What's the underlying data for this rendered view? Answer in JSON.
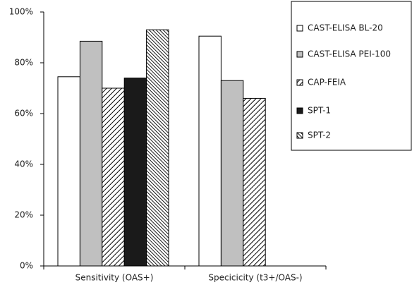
{
  "chart_data": {
    "type": "bar",
    "categories": [
      "Sensitivity (OAS+)",
      "Specicicity (t3+/OAS-)"
    ],
    "series": [
      {
        "name": "CAST-ELISA BL-20",
        "color": "#ffffff",
        "pattern": "none",
        "values": [
          74.5,
          90.5
        ]
      },
      {
        "name": "CAST-ELISA PEI-100",
        "color": "#c0c0c0",
        "pattern": "none",
        "values": [
          88.5,
          73
        ]
      },
      {
        "name": "CAP-FEIA",
        "color": "#ffffff",
        "pattern": "diagonal",
        "values": [
          70,
          66
        ]
      },
      {
        "name": "SPT-1",
        "color": "#1a1a1a",
        "pattern": "none",
        "values": [
          74,
          null
        ]
      },
      {
        "name": "SPT-2",
        "color": "#ffffff",
        "pattern": "dense-diagonal",
        "values": [
          93,
          null
        ]
      }
    ],
    "ylim": [
      0,
      100
    ],
    "yticks": [
      {
        "value": 0,
        "label": "0%"
      },
      {
        "value": 20,
        "label": "20%"
      },
      {
        "value": 40,
        "label": "40%"
      },
      {
        "value": 60,
        "label": "60%"
      },
      {
        "value": 80,
        "label": "80%"
      },
      {
        "value": 100,
        "label": "100%"
      }
    ],
    "grid": false,
    "legend": "right"
  }
}
